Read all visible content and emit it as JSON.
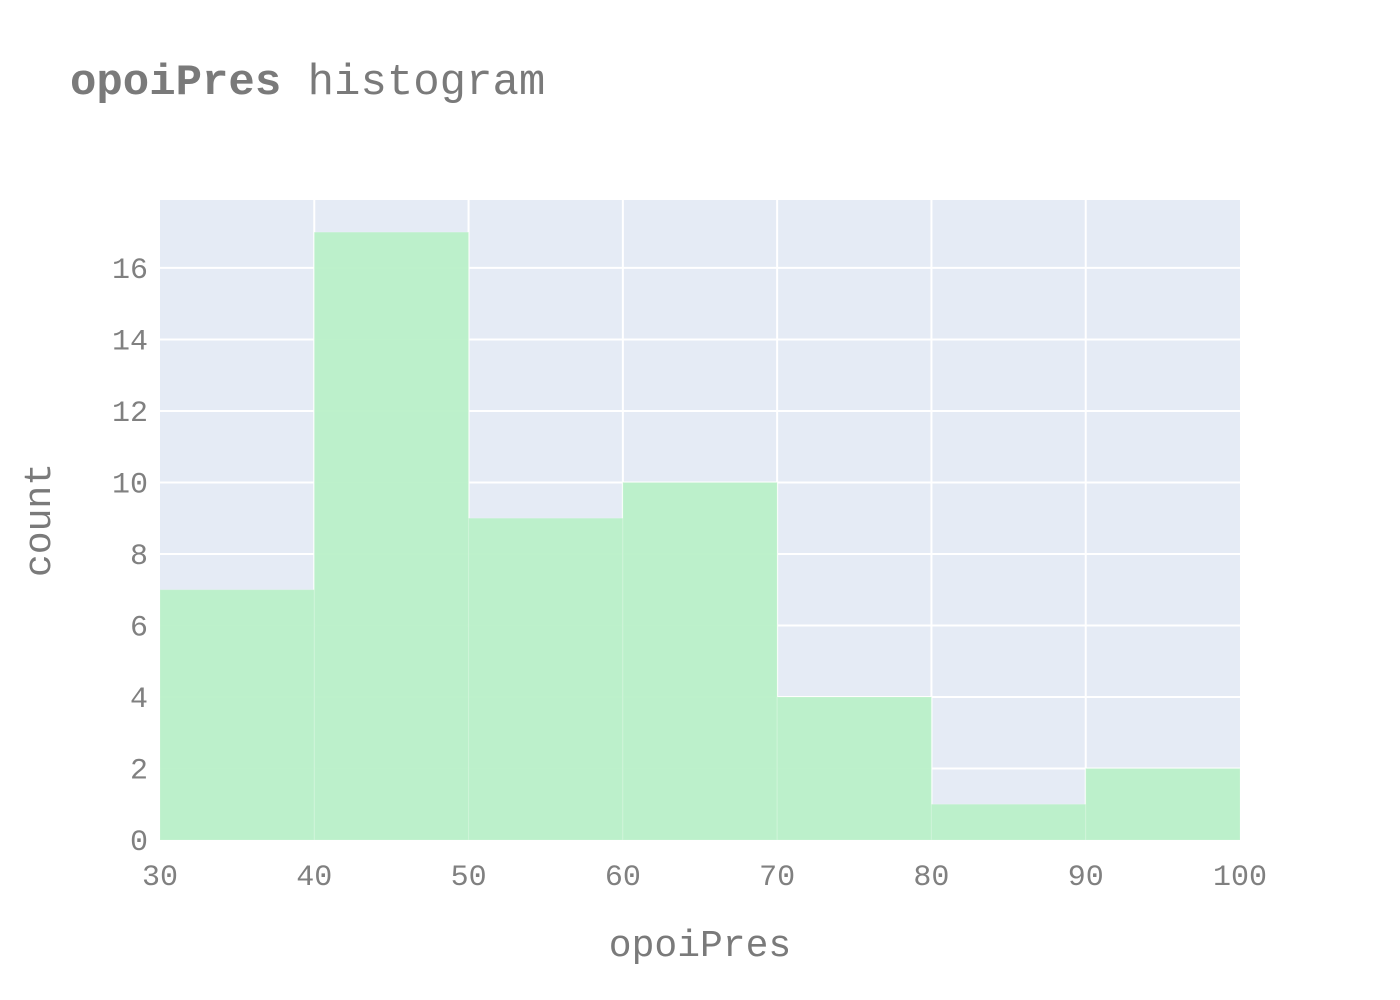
{
  "title": {
    "bold": "opoiPres",
    "rest": " histogram"
  },
  "chart_data": {
    "type": "bar",
    "bins": [
      {
        "x0": 30,
        "x1": 40,
        "count": 7
      },
      {
        "x0": 40,
        "x1": 50,
        "count": 17
      },
      {
        "x0": 50,
        "x1": 60,
        "count": 9
      },
      {
        "x0": 60,
        "x1": 70,
        "count": 10
      },
      {
        "x0": 70,
        "x1": 80,
        "count": 4
      },
      {
        "x0": 80,
        "x1": 90,
        "count": 1
      },
      {
        "x0": 90,
        "x1": 100,
        "count": 2
      }
    ],
    "xlabel": "opoiPres",
    "ylabel": "count",
    "xlim": [
      30,
      100
    ],
    "ylim": [
      0,
      17.9
    ],
    "xticks": [
      30,
      40,
      50,
      60,
      70,
      80,
      90,
      100
    ],
    "yticks": [
      0,
      2,
      4,
      6,
      8,
      10,
      12,
      14,
      16
    ],
    "grid": true,
    "bar_color": "#b9f0c8",
    "plot_bg": "#e5ebf5"
  }
}
